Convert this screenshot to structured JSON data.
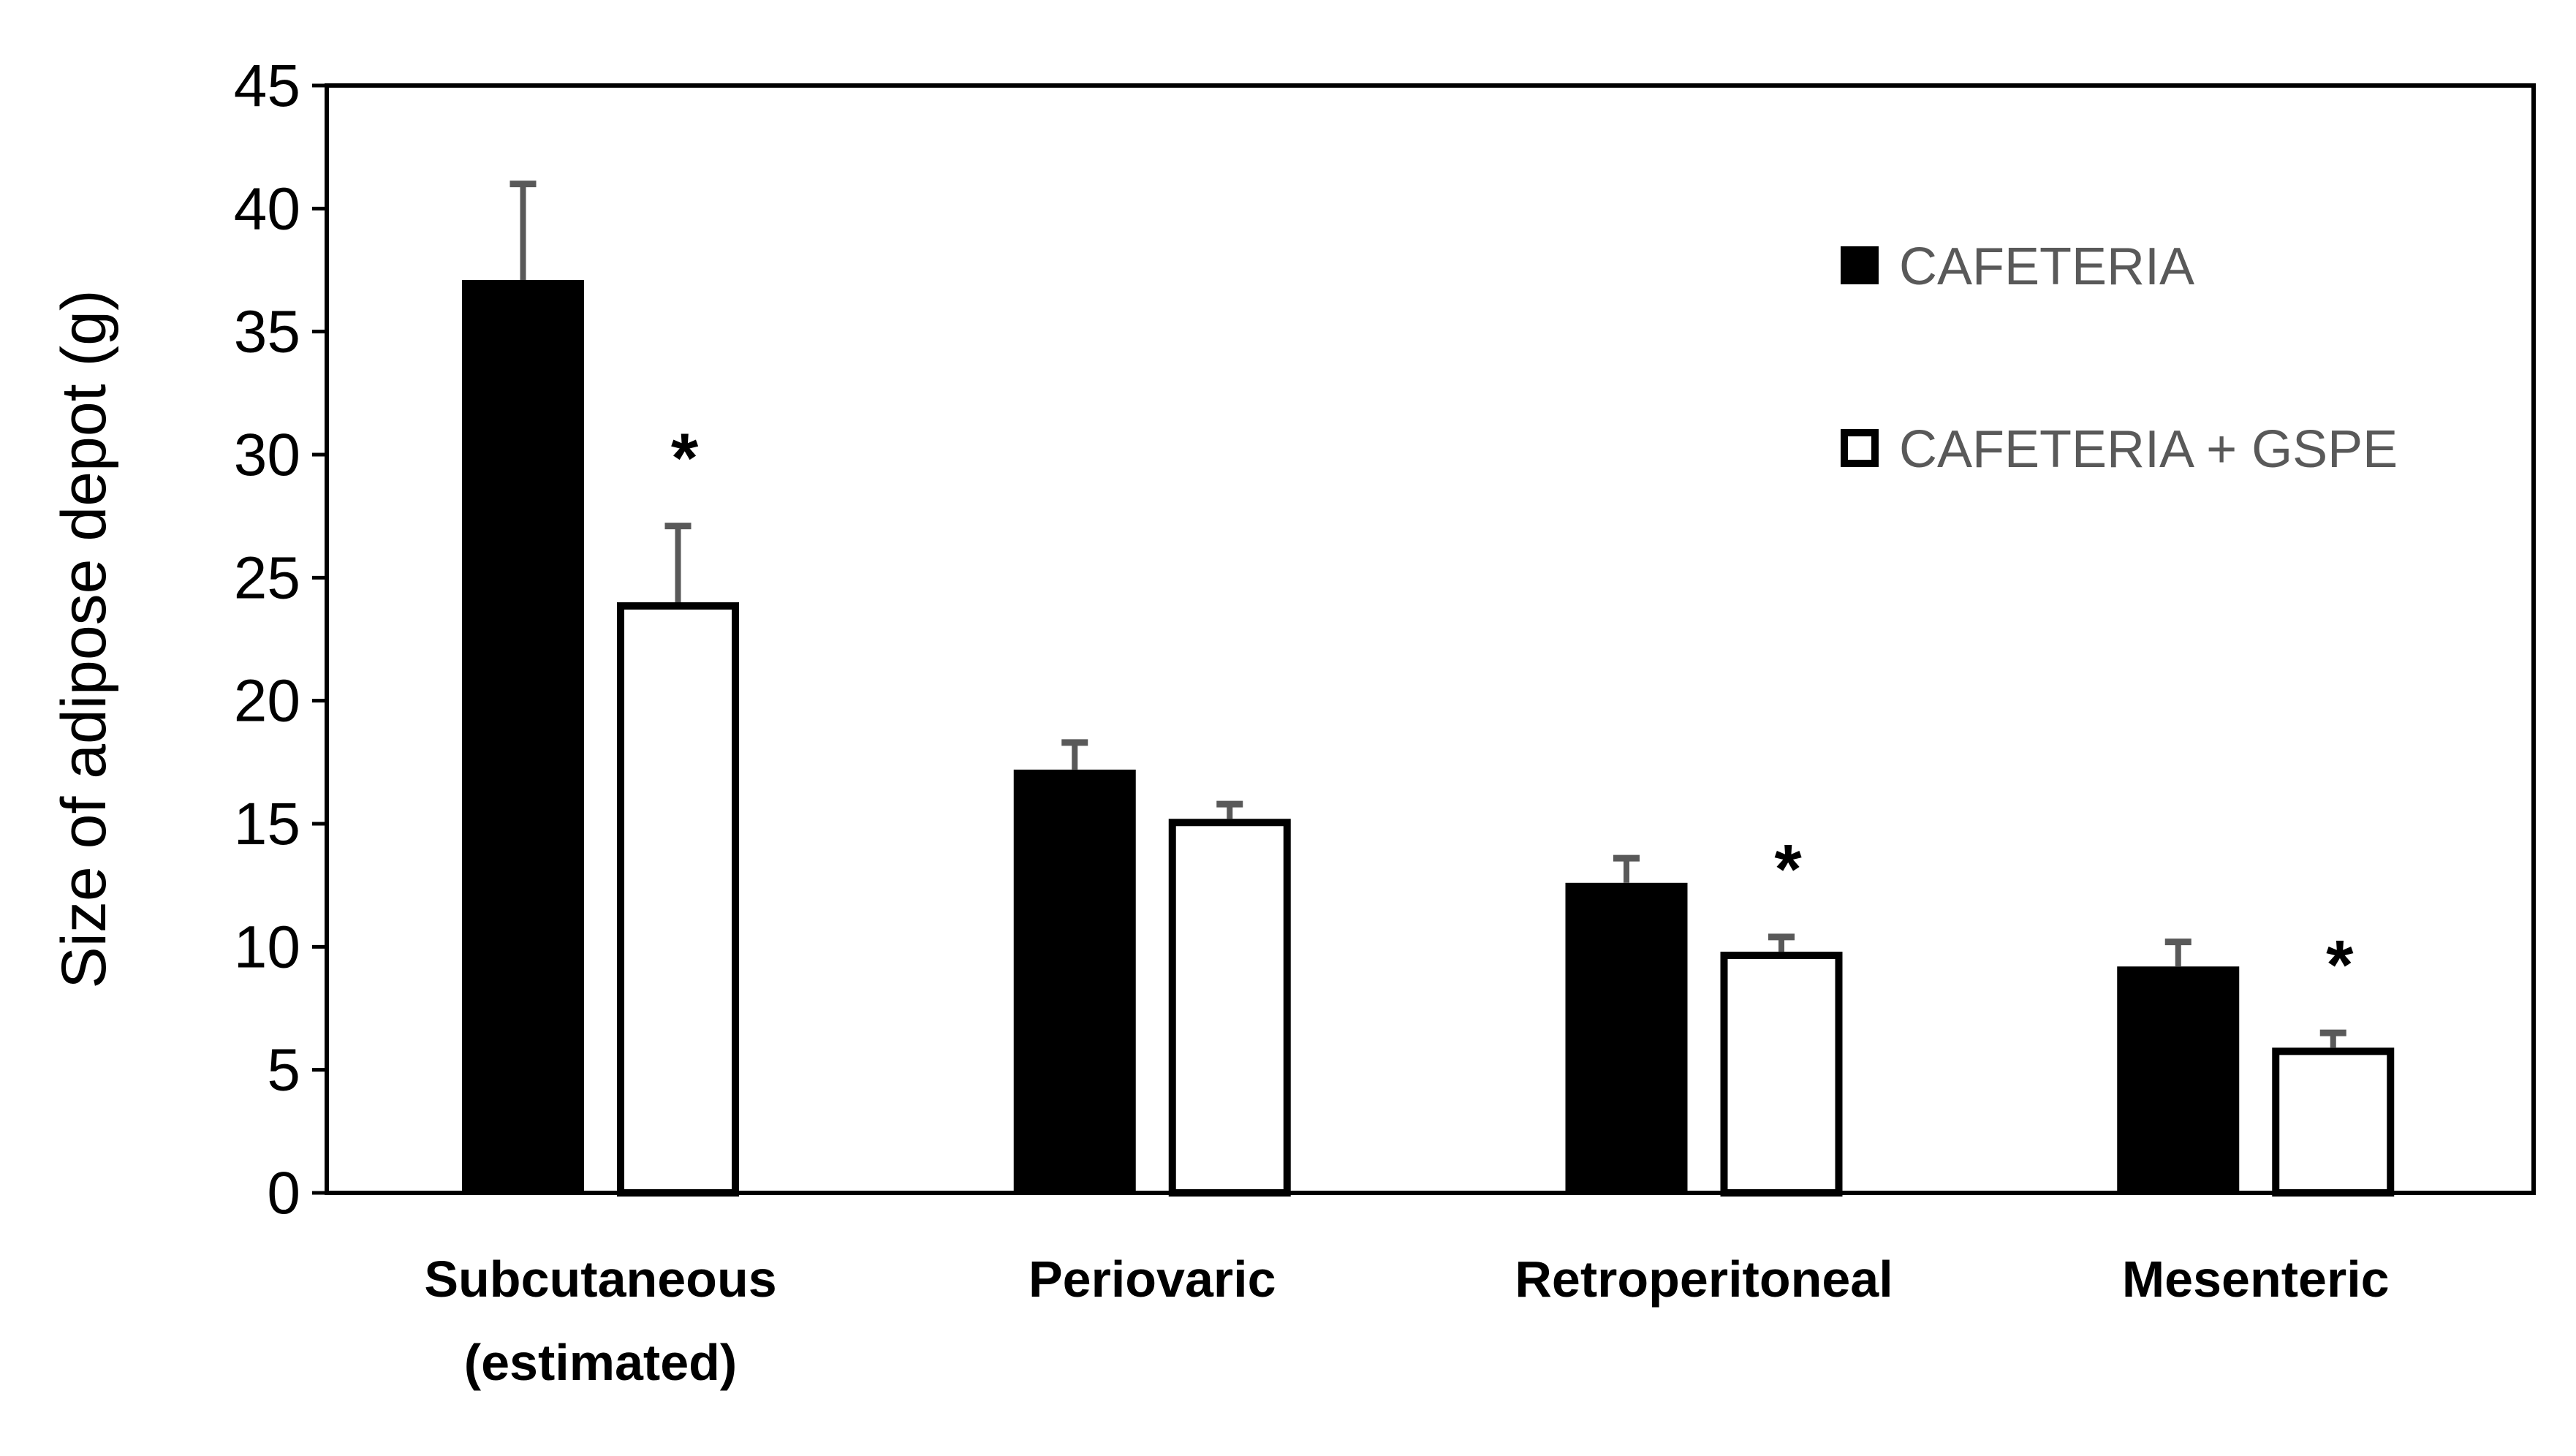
{
  "chart_data": {
    "type": "bar",
    "title": "",
    "xlabel": "",
    "ylabel": "Size of adipose depot (g)",
    "ylim": [
      0,
      45
    ],
    "yticks": [
      0,
      5,
      10,
      15,
      20,
      25,
      30,
      35,
      40,
      45
    ],
    "grid": false,
    "legend_position": "top-right",
    "categories": [
      [
        "Subcutaneous",
        "(estimated)"
      ],
      [
        "Periovaric"
      ],
      [
        "Retroperitoneal"
      ],
      [
        "Mesenteric"
      ]
    ],
    "series": [
      {
        "name": "CAFETERIA",
        "fill": "#000000",
        "values": [
          37.1,
          17.2,
          12.6,
          9.2
        ],
        "errors": [
          3.9,
          1.1,
          1.0,
          1.0
        ]
      },
      {
        "name": "CAFETERIA + GSPE",
        "fill": "#ffffff",
        "values": [
          24.0,
          15.2,
          9.8,
          5.9
        ],
        "errors": [
          3.1,
          0.6,
          0.6,
          0.6
        ]
      }
    ],
    "significance_marker": "*",
    "significant": [
      {
        "series": 1,
        "category": 0
      },
      {
        "series": 1,
        "category": 2
      },
      {
        "series": 1,
        "category": 3
      }
    ],
    "colors": {
      "error_bar": "#595959",
      "legend_text": "#595959",
      "axis": "#000000"
    }
  }
}
